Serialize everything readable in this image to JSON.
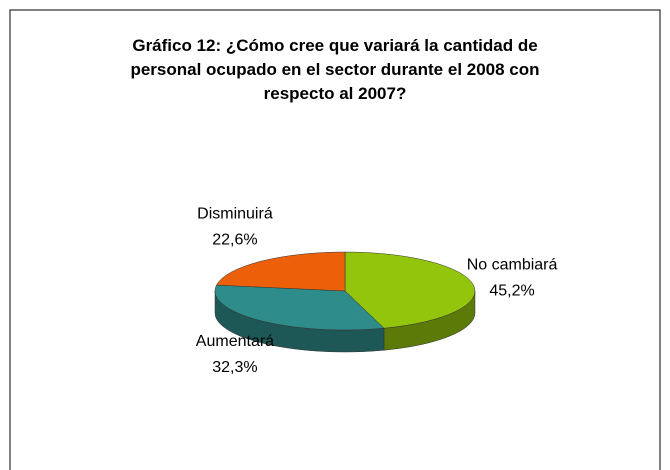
{
  "chart_data": {
    "type": "pie",
    "title": "Gráfico 12: ¿Cómo cree que variará la cantidad de personal ocupado en el sector durante el 2008 con respecto al 2007?",
    "categories": [
      "No cambiará",
      "Aumentará",
      "Disminuirá"
    ],
    "values": [
      45.2,
      32.3,
      22.6
    ],
    "value_labels": [
      "45,2%",
      "32,3%",
      "22,6%"
    ],
    "colors": [
      "#92c50c",
      "#2e8c8a",
      "#ec6009"
    ]
  }
}
